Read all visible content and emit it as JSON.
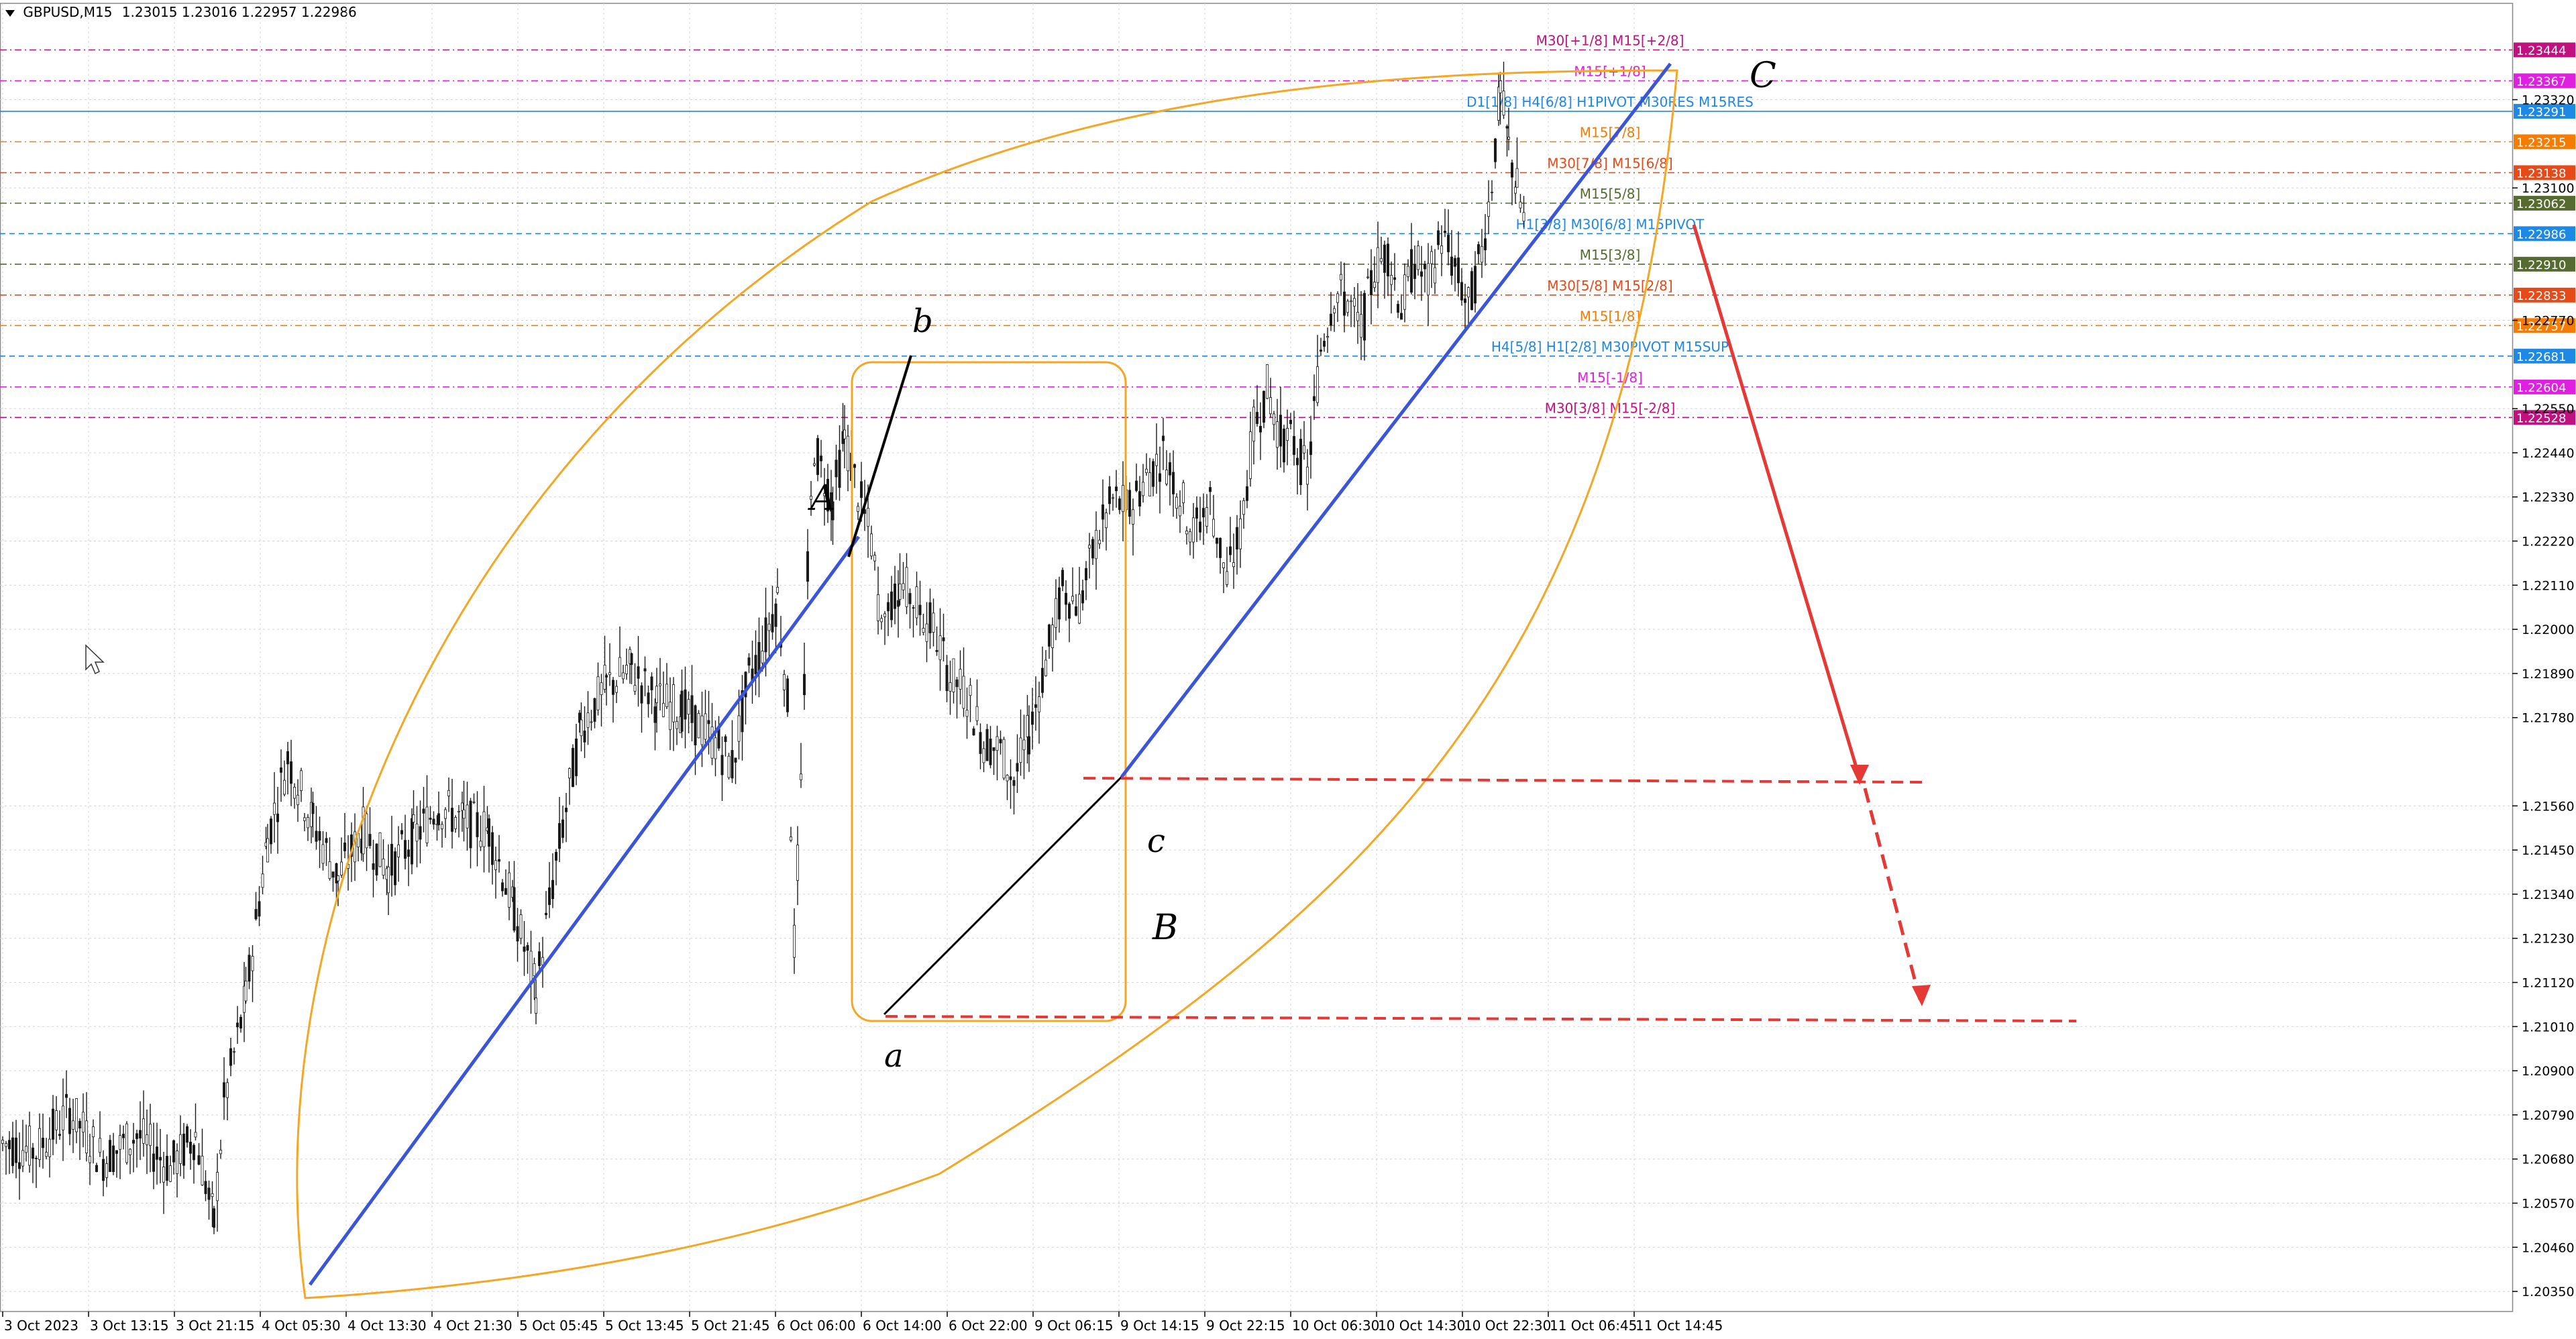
{
  "header": {
    "symbol": "GBPUSD,M15",
    "ohlc": "1.23015 1.23016 1.22957 1.22986"
  },
  "chart_data": {
    "type": "candlestick",
    "symbol": "GBPUSD",
    "timeframe": "M15",
    "ylim": [
      1.203,
      1.2356
    ],
    "y_ticks": [
      "1.23320",
      "1.23100",
      "1.22770",
      "1.22550",
      "1.22440",
      "1.22330",
      "1.22220",
      "1.22110",
      "1.22000",
      "1.21890",
      "1.21780",
      "1.21560",
      "1.21450",
      "1.21340",
      "1.21230",
      "1.21120",
      "1.21010",
      "1.20900",
      "1.20790",
      "1.20680",
      "1.20570",
      "1.20460",
      "1.20350"
    ],
    "x_ticks": [
      "3 Oct 2023",
      "3 Oct 13:15",
      "3 Oct 21:15",
      "4 Oct 05:30",
      "4 Oct 13:30",
      "4 Oct 21:30",
      "5 Oct 05:45",
      "5 Oct 13:45",
      "5 Oct 21:45",
      "6 Oct 06:00",
      "6 Oct 14:00",
      "6 Oct 22:00",
      "9 Oct 06:15",
      "9 Oct 14:15",
      "9 Oct 22:15",
      "10 Oct 06:30",
      "10 Oct 14:30",
      "10 Oct 22:30",
      "11 Oct 06:45",
      "11 Oct 14:45"
    ],
    "price_path": [
      [
        0,
        1.2072
      ],
      [
        20,
        1.207
      ],
      [
        40,
        1.208
      ],
      [
        60,
        1.2068
      ],
      [
        80,
        1.2074
      ],
      [
        100,
        1.2066
      ],
      [
        115,
        1.2074
      ],
      [
        126,
        1.2052
      ],
      [
        132,
        1.2082
      ],
      [
        145,
        1.2108
      ],
      [
        158,
        1.2148
      ],
      [
        170,
        1.2168
      ],
      [
        185,
        1.2152
      ],
      [
        200,
        1.2138
      ],
      [
        215,
        1.215
      ],
      [
        230,
        1.214
      ],
      [
        245,
        1.2148
      ],
      [
        260,
        1.2156
      ],
      [
        275,
        1.2152
      ],
      [
        290,
        1.215
      ],
      [
        305,
        1.213
      ],
      [
        318,
        1.211
      ],
      [
        330,
        1.2142
      ],
      [
        345,
        1.2176
      ],
      [
        360,
        1.2186
      ],
      [
        375,
        1.219
      ],
      [
        390,
        1.2182
      ],
      [
        405,
        1.218
      ],
      [
        415,
        1.2176
      ],
      [
        425,
        1.2172
      ],
      [
        435,
        1.2166
      ],
      [
        445,
        1.2188
      ],
      [
        455,
        1.2198
      ],
      [
        462,
        1.2208
      ],
      [
        468,
        1.2182
      ],
      [
        472,
        1.2122
      ],
      [
        476,
        1.216
      ],
      [
        480,
        1.2214
      ],
      [
        484,
        1.2246
      ],
      [
        488,
        1.224
      ],
      [
        495,
        1.2232
      ],
      [
        502,
        1.2248
      ],
      [
        510,
        1.2234
      ],
      [
        518,
        1.2222
      ],
      [
        524,
        1.22
      ]
    ],
    "price_path_2": [
      [
        524,
        1.2202
      ],
      [
        535,
        1.2212
      ],
      [
        545,
        1.2206
      ],
      [
        555,
        1.22
      ],
      [
        565,
        1.2188
      ],
      [
        575,
        1.2184
      ],
      [
        585,
        1.2172
      ],
      [
        595,
        1.217
      ],
      [
        603,
        1.2162
      ],
      [
        612,
        1.2174
      ],
      [
        622,
        1.2192
      ],
      [
        632,
        1.221
      ],
      [
        642,
        1.2206
      ],
      [
        652,
        1.2222
      ],
      [
        662,
        1.2232
      ],
      [
        672,
        1.223
      ],
      [
        682,
        1.2238
      ],
      [
        692,
        1.2244
      ],
      [
        700,
        1.2236
      ],
      [
        710,
        1.2224
      ],
      [
        720,
        1.2232
      ],
      [
        730,
        1.2212
      ],
      [
        738,
        1.2224
      ],
      [
        746,
        1.225
      ],
      [
        754,
        1.226
      ],
      [
        762,
        1.2248
      ],
      [
        770,
        1.2246
      ],
      [
        778,
        1.2238
      ],
      [
        786,
        1.227
      ],
      [
        794,
        1.2284
      ],
      [
        802,
        1.2282
      ],
      [
        810,
        1.2274
      ],
      [
        818,
        1.229
      ],
      [
        826,
        1.2294
      ],
      [
        834,
        1.228
      ],
      [
        842,
        1.2292
      ],
      [
        850,
        1.2286
      ],
      [
        858,
        1.2298
      ],
      [
        866,
        1.229
      ],
      [
        874,
        1.228
      ],
      [
        882,
        1.2294
      ],
      [
        888,
        1.2312
      ],
      [
        893,
        1.2334
      ],
      [
        898,
        1.232
      ],
      [
        903,
        1.231
      ],
      [
        908,
        1.23
      ]
    ],
    "levels": [
      {
        "price": 1.23444,
        "label": "M30[+1/8] M15[+2/8]",
        "tag": "1.23444",
        "color": "#c0127e",
        "style": "dash-dot"
      },
      {
        "price": 1.23367,
        "label": "M15[+1/8]",
        "tag": "1.23367",
        "color": "#e020e0",
        "style": "dash-dot"
      },
      {
        "price": 1.23291,
        "label": "D1[1/8] H4[6/8] H1PIVOT M30RES M15RES",
        "tag": "1.23291",
        "color": "#1e88e5",
        "style": "solid"
      },
      {
        "price": 1.23215,
        "label": "M15[7/8]",
        "tag": "1.23215",
        "color": "#f57c00",
        "style": "dash-dot"
      },
      {
        "price": 1.23138,
        "label": "M30[7/8] M15[6/8]",
        "tag": "1.23138",
        "color": "#e64a19",
        "style": "dash-dot"
      },
      {
        "price": 1.23062,
        "label": "M15[5/8]",
        "tag": "1.23062",
        "color": "#556b2f",
        "style": "dash-dot"
      },
      {
        "price": 1.22986,
        "label": "H1[3/8] M30[6/8] M15PIVOT",
        "tag": "1.22986",
        "color": "#1e88e5",
        "style": "dash"
      },
      {
        "price": 1.2291,
        "label": "M15[3/8]",
        "tag": "1.22910",
        "color": "#556b2f",
        "style": "dash-dot"
      },
      {
        "price": 1.22833,
        "label": "M30[5/8] M15[2/8]",
        "tag": "1.22833",
        "color": "#e64a19",
        "style": "dash-dot"
      },
      {
        "price": 1.22757,
        "label": "M15[1/8]",
        "tag": "1.22757",
        "color": "#f57c00",
        "style": "dash-dot"
      },
      {
        "price": 1.22681,
        "label": "H4[5/8] H1[2/8] M30PIVOT M15SUP",
        "tag": "1.22681",
        "color": "#1e88e5",
        "style": "dash"
      },
      {
        "price": 1.22604,
        "label": "M15[-1/8]",
        "tag": "1.22604",
        "color": "#e020e0",
        "style": "dash-dot"
      },
      {
        "price": 1.22528,
        "label": "M30[3/8] M15[-2/8]",
        "tag": "1.22528",
        "color": "#c0127e",
        "style": "dash-dot"
      }
    ],
    "current_price": "1.22986",
    "wave_labels": [
      "A",
      "b",
      "a",
      "c",
      "B",
      "C"
    ],
    "colors": {
      "trend": "#3a55d9",
      "ellipse": "#f5a623",
      "forecast": "#e53935",
      "candle": "#1a1a1a",
      "grid": "#d0d4dc"
    }
  }
}
